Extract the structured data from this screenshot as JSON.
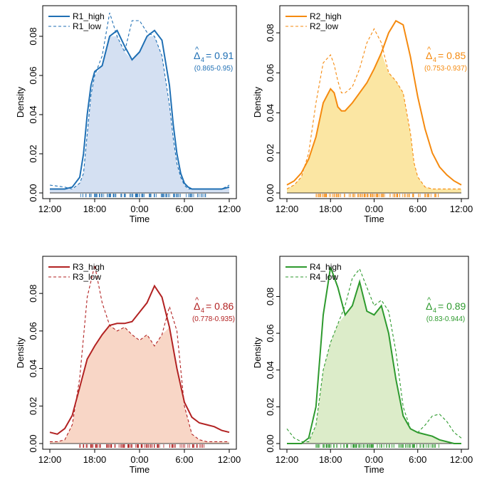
{
  "chart_data": [
    {
      "type": "area",
      "color": "#1f6fb4",
      "fill": "#d4e0f2",
      "xlabel": "Time",
      "ylabel": "Density",
      "xticks": [
        "12:00",
        "18:00",
        "0:00",
        "6:00",
        "12:00"
      ],
      "yticks": [
        "0.00",
        "0.02",
        "0.04",
        "0.06",
        "0.08"
      ],
      "xlim": [
        0,
        24
      ],
      "ylim": [
        0,
        0.092
      ],
      "legend": [
        "R1_high",
        "R1_low"
      ],
      "legend_position": "top-left",
      "overlap_prefix": "Δ",
      "overlap_sub": "4",
      "overlap_value": "= 0.91",
      "overlap_ci": "(0.865-0.95)",
      "series": [
        {
          "name": "R1_high",
          "style": "solid",
          "x": [
            0,
            2,
            3,
            4,
            4.5,
            5,
            5.5,
            6,
            7,
            8,
            9,
            10,
            11,
            12,
            13,
            14,
            15,
            16,
            16.5,
            17,
            17.5,
            18,
            18.5,
            19,
            19.5,
            20,
            20.5,
            21,
            22,
            23,
            24
          ],
          "values": [
            0.002,
            0.002,
            0.003,
            0.008,
            0.02,
            0.04,
            0.055,
            0.062,
            0.065,
            0.08,
            0.083,
            0.075,
            0.068,
            0.072,
            0.08,
            0.083,
            0.078,
            0.055,
            0.035,
            0.02,
            0.01,
            0.005,
            0.003,
            0.002,
            0.002,
            0.002,
            0.002,
            0.002,
            0.002,
            0.002,
            0.003
          ]
        },
        {
          "name": "R1_low",
          "style": "dashed",
          "x": [
            0,
            2,
            3,
            4,
            4.5,
            5,
            5.5,
            6,
            7,
            8,
            9,
            10,
            11,
            12,
            13,
            14,
            15,
            16,
            16.5,
            17,
            17.5,
            18,
            18.5,
            19,
            19.5,
            20,
            20.5,
            21,
            22,
            23,
            24
          ],
          "values": [
            0.004,
            0.003,
            0.002,
            0.005,
            0.01,
            0.03,
            0.05,
            0.06,
            0.07,
            0.092,
            0.08,
            0.072,
            0.088,
            0.088,
            0.082,
            0.08,
            0.07,
            0.045,
            0.028,
            0.015,
            0.008,
            0.004,
            0.002,
            0.002,
            0.002,
            0.002,
            0.002,
            0.002,
            0.002,
            0.002,
            0.004
          ]
        }
      ]
    },
    {
      "type": "area",
      "color": "#f58a0f",
      "fill": "#fbe6a3",
      "xlabel": "Time",
      "ylabel": "Density",
      "xticks": [
        "12:00",
        "18:00",
        "0:00",
        "6:00",
        "12:00"
      ],
      "yticks": [
        "0.00",
        "0.02",
        "0.04",
        "0.06",
        "0.08"
      ],
      "xlim": [
        0,
        24
      ],
      "ylim": [
        0,
        0.09
      ],
      "legend": [
        "R2_high",
        "R2_low"
      ],
      "legend_position": "top-left",
      "overlap_prefix": "Δ",
      "overlap_sub": "4",
      "overlap_value": "= 0.85",
      "overlap_ci": "(0.753-0.937)",
      "series": [
        {
          "name": "R2_high",
          "style": "solid",
          "x": [
            0,
            1,
            2,
            3,
            4,
            5,
            6,
            6.5,
            7,
            7.5,
            8,
            9,
            10,
            11,
            12,
            13,
            14,
            15,
            16,
            17,
            17.5,
            18,
            19,
            20,
            21,
            22,
            23,
            24
          ],
          "values": [
            0.004,
            0.006,
            0.01,
            0.017,
            0.028,
            0.045,
            0.052,
            0.05,
            0.043,
            0.041,
            0.041,
            0.045,
            0.05,
            0.055,
            0.062,
            0.07,
            0.08,
            0.086,
            0.084,
            0.068,
            0.058,
            0.048,
            0.032,
            0.02,
            0.013,
            0.009,
            0.006,
            0.004
          ]
        },
        {
          "name": "R2_low",
          "style": "dashed",
          "x": [
            0,
            1,
            2,
            3,
            4,
            5,
            6,
            6.5,
            7,
            7.5,
            8,
            9,
            10,
            11,
            12,
            13,
            14,
            15,
            16,
            17,
            17.5,
            18,
            19,
            20,
            21,
            22,
            23,
            24
          ],
          "values": [
            0.002,
            0.004,
            0.008,
            0.02,
            0.045,
            0.065,
            0.069,
            0.064,
            0.056,
            0.05,
            0.05,
            0.053,
            0.062,
            0.075,
            0.082,
            0.075,
            0.06,
            0.056,
            0.05,
            0.03,
            0.015,
            0.008,
            0.003,
            0.002,
            0.002,
            0.002,
            0.002,
            0.002
          ]
        }
      ]
    },
    {
      "type": "area",
      "color": "#b22222",
      "fill": "#f8d6c6",
      "xlabel": "Time",
      "ylabel": "Density",
      "xticks": [
        "12:00",
        "18:00",
        "0:00",
        "6:00",
        "12:00"
      ],
      "yticks": [
        "0.00",
        "0.02",
        "0.04",
        "0.06",
        "0.08"
      ],
      "xlim": [
        0,
        24
      ],
      "ylim": [
        0,
        0.096
      ],
      "legend": [
        "R3_high",
        "R3_low"
      ],
      "legend_position": "top-left",
      "overlap_prefix": "Δ",
      "overlap_sub": "4",
      "overlap_value": "= 0.86",
      "overlap_ci": "(0.778-0.935)",
      "series": [
        {
          "name": "R3_high",
          "style": "solid",
          "x": [
            0,
            1,
            2,
            3,
            4,
            5,
            6,
            7,
            8,
            9,
            10,
            11,
            12,
            13,
            14,
            15,
            16,
            17,
            18,
            19,
            20,
            21,
            22,
            23,
            24
          ],
          "values": [
            0.006,
            0.005,
            0.008,
            0.015,
            0.03,
            0.045,
            0.052,
            0.058,
            0.063,
            0.064,
            0.064,
            0.065,
            0.07,
            0.075,
            0.084,
            0.078,
            0.062,
            0.04,
            0.022,
            0.014,
            0.011,
            0.01,
            0.009,
            0.007,
            0.006
          ]
        },
        {
          "name": "R3_low",
          "style": "dashed",
          "x": [
            0,
            1,
            2,
            3,
            4,
            5,
            6,
            7,
            8,
            9,
            10,
            11,
            12,
            13,
            14,
            15,
            16,
            17,
            18,
            19,
            20,
            21,
            22,
            23,
            24
          ],
          "values": [
            0.001,
            0.001,
            0.002,
            0.01,
            0.035,
            0.078,
            0.095,
            0.075,
            0.063,
            0.06,
            0.062,
            0.058,
            0.055,
            0.058,
            0.052,
            0.058,
            0.073,
            0.06,
            0.02,
            0.005,
            0.002,
            0.001,
            0.001,
            0.001,
            0.001
          ]
        }
      ]
    },
    {
      "type": "area",
      "color": "#2e9a2e",
      "fill": "#dcecc9",
      "xlabel": "Time",
      "ylabel": "Density",
      "xticks": [
        "12:00",
        "18:00",
        "0:00",
        "6:00",
        "12:00"
      ],
      "yticks": [
        "0.00",
        "0.02",
        "0.04",
        "0.06",
        "0.08"
      ],
      "xlim": [
        0,
        24
      ],
      "ylim": [
        0,
        0.098
      ],
      "legend": [
        "R4_high",
        "R4_low"
      ],
      "legend_position": "top-left",
      "overlap_prefix": "Δ",
      "overlap_sub": "4",
      "overlap_value": "= 0.89",
      "overlap_ci": "(0.83-0.944)",
      "series": [
        {
          "name": "R4_high",
          "style": "solid",
          "x": [
            0,
            1,
            2,
            3,
            4,
            5,
            6,
            7,
            8,
            9,
            10,
            11,
            12,
            13,
            14,
            15,
            16,
            17,
            18,
            19,
            20,
            21,
            22,
            23,
            24
          ],
          "values": [
            0.0,
            0.0,
            0.0,
            0.003,
            0.02,
            0.07,
            0.096,
            0.085,
            0.07,
            0.075,
            0.088,
            0.072,
            0.07,
            0.075,
            0.06,
            0.035,
            0.015,
            0.008,
            0.006,
            0.005,
            0.004,
            0.002,
            0.001,
            0.0,
            0.0
          ]
        },
        {
          "name": "R4_low",
          "style": "dashed",
          "x": [
            0,
            1,
            2,
            3,
            4,
            5,
            6,
            7,
            8,
            9,
            10,
            11,
            12,
            13,
            14,
            15,
            16,
            17,
            18,
            19,
            20,
            21,
            22,
            23,
            24
          ],
          "values": [
            0.008,
            0.003,
            0.001,
            0.001,
            0.01,
            0.04,
            0.055,
            0.065,
            0.075,
            0.09,
            0.095,
            0.085,
            0.075,
            0.078,
            0.072,
            0.05,
            0.02,
            0.008,
            0.006,
            0.01,
            0.015,
            0.016,
            0.012,
            0.006,
            0.003
          ]
        }
      ]
    }
  ]
}
